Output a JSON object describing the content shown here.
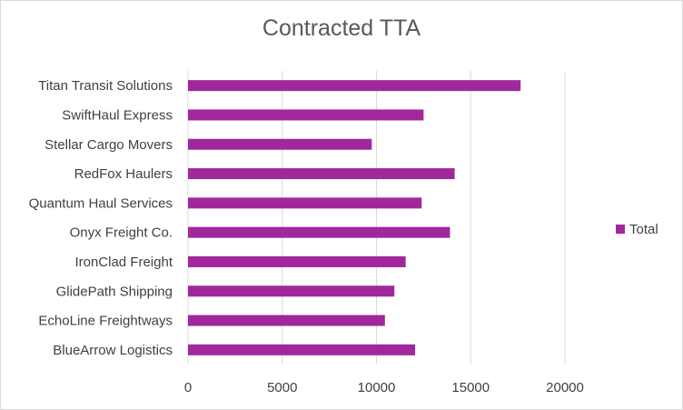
{
  "chart_data": {
    "type": "bar",
    "orientation": "horizontal",
    "title": "Contracted TTA",
    "xlabel": "",
    "ylabel": "",
    "categories": [
      "BlueArrow Logistics",
      "EchoLine Freightways",
      "GlidePath Shipping",
      "IronClad Freight",
      "Onyx Freight Co.",
      "Quantum Haul Services",
      "RedFox Haulers",
      "Stellar Cargo Movers",
      "SwiftHaul Express",
      "Titan Transit Solutions"
    ],
    "series": [
      {
        "name": "Total",
        "color": "#a0289c",
        "values": [
          12050,
          10450,
          10950,
          11550,
          13900,
          12400,
          14150,
          9750,
          12500,
          17650
        ]
      }
    ],
    "xlim": [
      0,
      20000
    ],
    "xticks": [
      0,
      5000,
      10000,
      15000,
      20000
    ],
    "xtick_labels": [
      "0",
      "5000",
      "10000",
      "15000",
      "20000"
    ],
    "grid": "vertical",
    "legend": "right",
    "gridline_color": "#d9d9d9"
  }
}
